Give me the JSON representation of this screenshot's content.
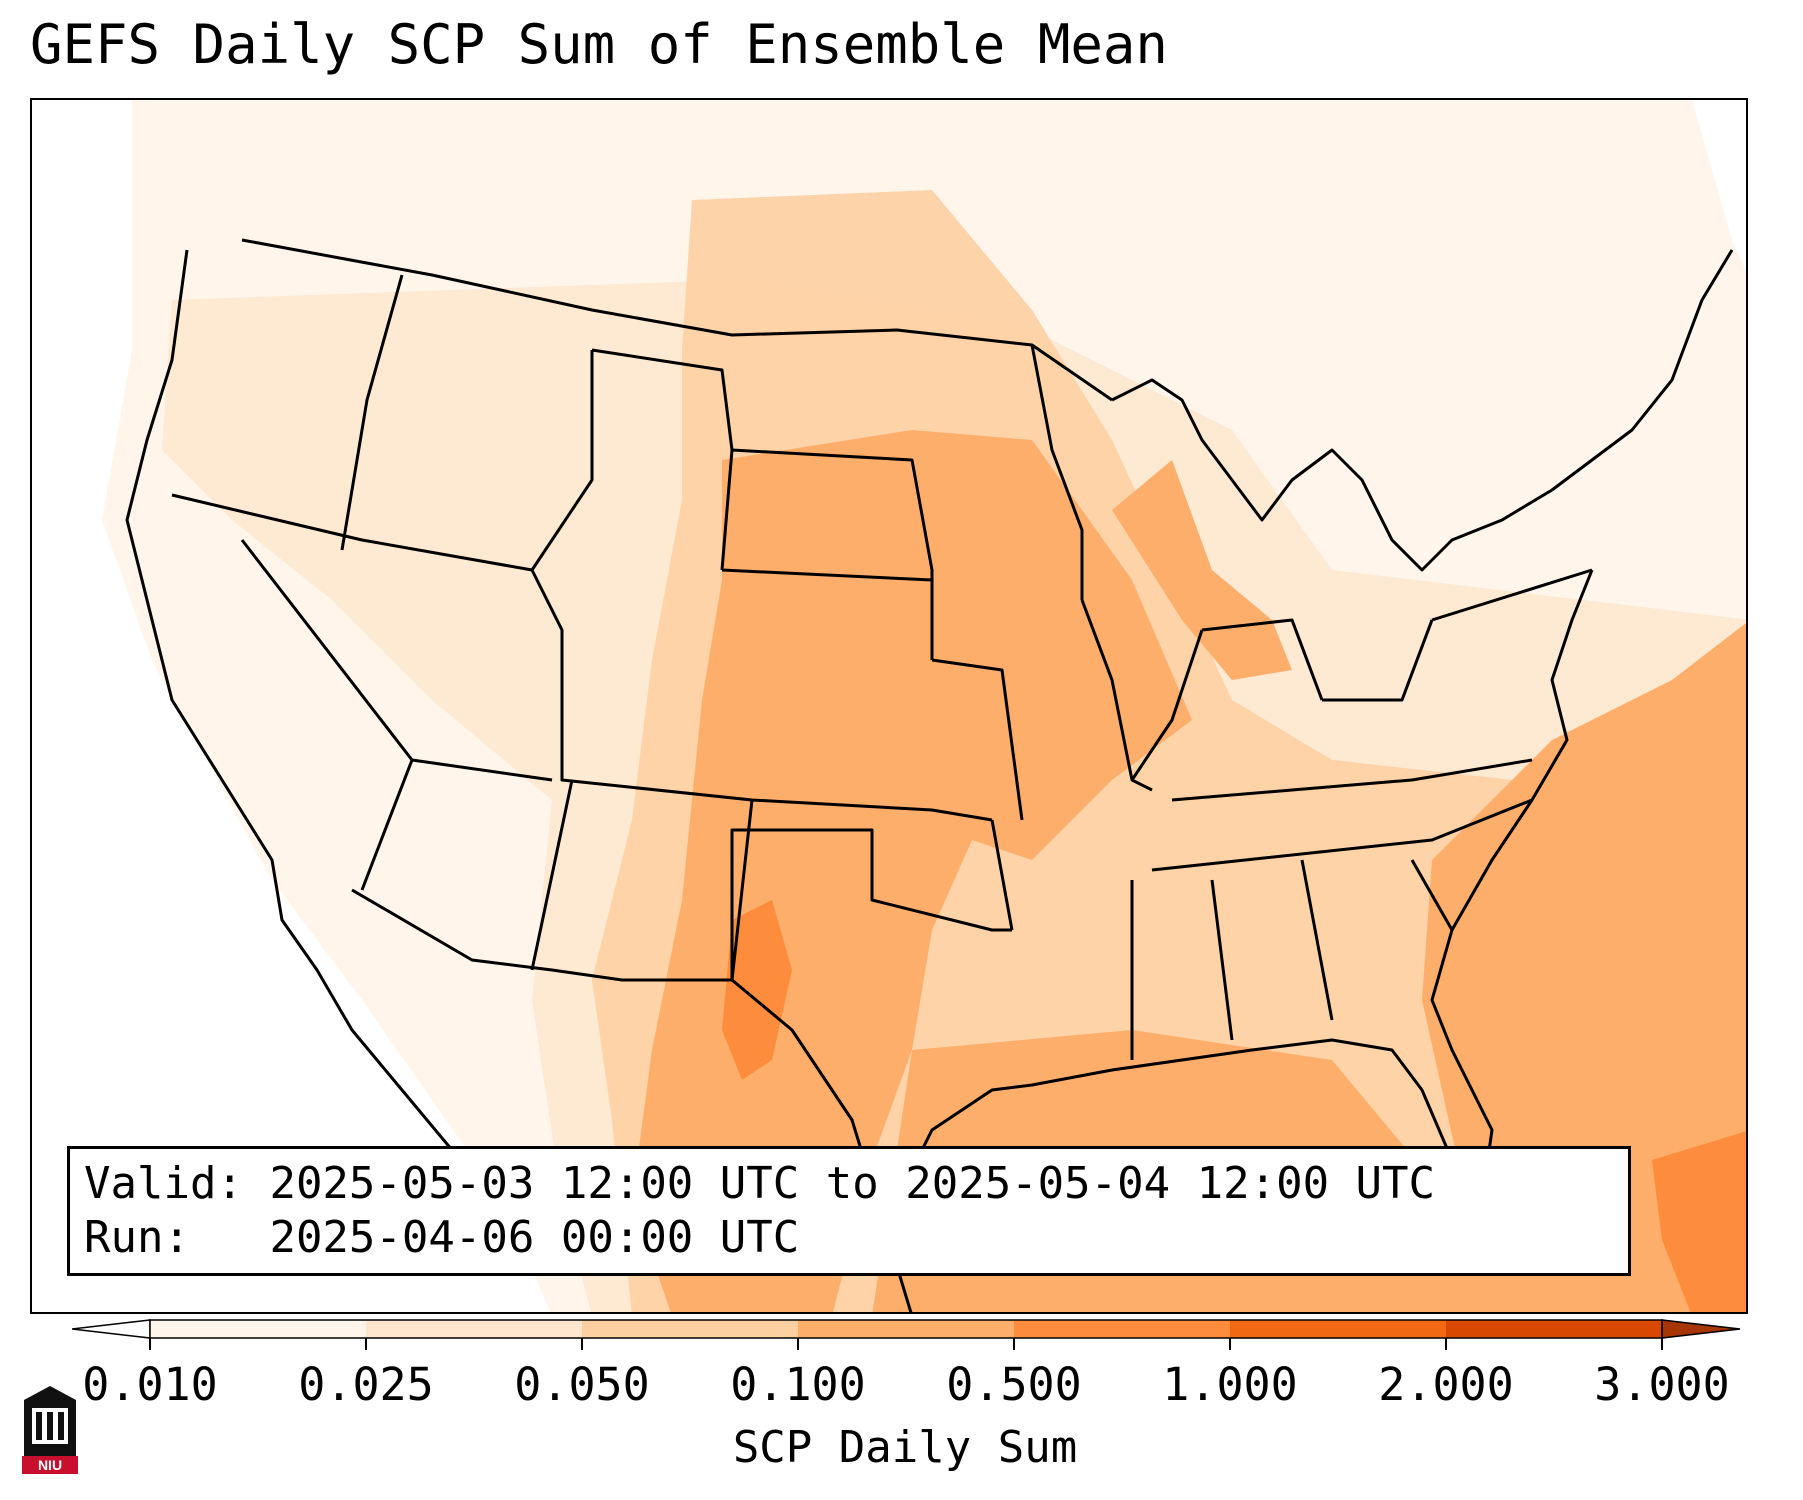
{
  "title": "GEFS Daily SCP Sum of Ensemble Mean",
  "info": {
    "valid_label": "Valid:",
    "valid_value": "2025-05-03 12:00 UTC to 2025-05-04 12:00 UTC",
    "run_label": "Run:",
    "run_value": "2025-04-06 00:00 UTC"
  },
  "colorbar": {
    "label": "SCP Daily Sum",
    "ticks": [
      "0.010",
      "0.025",
      "0.050",
      "0.100",
      "0.500",
      "1.000",
      "2.000",
      "3.000"
    ],
    "colors": [
      "#fff5eb",
      "#fee6ce",
      "#fdd0a2",
      "#fdae6b",
      "#fd8d3c",
      "#f16913",
      "#d94801"
    ],
    "extend_low_color": "#ffffff",
    "extend_high_color": "#a63603"
  },
  "logo": {
    "text": "NIU"
  }
}
